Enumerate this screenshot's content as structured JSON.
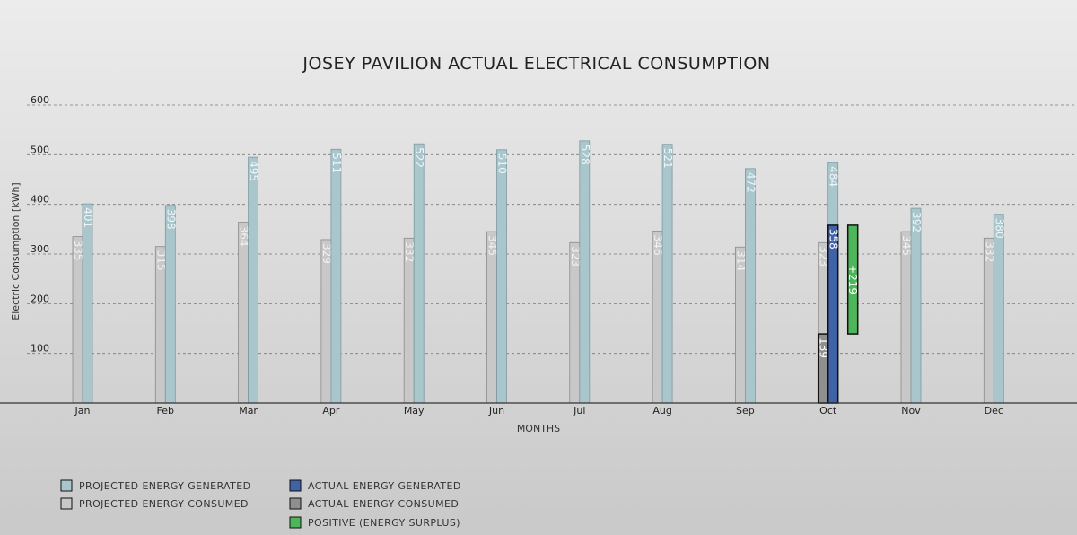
{
  "chart_data": {
    "type": "bar",
    "title": "JOSEY PAVILION ACTUAL ELECTRICAL CONSUMPTION",
    "xlabel": "MONTHS",
    "ylabel": "Electric Consumption [kWh]",
    "ylim": [
      0,
      600
    ],
    "yticks": [
      "100",
      "200",
      "300",
      "400",
      "500",
      "600"
    ],
    "grid": true,
    "legend_position": "bottom-left",
    "categories": [
      "Jan",
      "Feb",
      "Mar",
      "Apr",
      "May",
      "Jun",
      "Jul",
      "Aug",
      "Sep",
      "Oct",
      "Nov",
      "Dec"
    ],
    "series": [
      {
        "name": "PROJECTED ENERGY CONSUMED",
        "color": "#c8c8c8",
        "values": [
          335,
          315,
          364,
          329,
          332,
          345,
          323,
          346,
          314,
          323,
          345,
          332
        ]
      },
      {
        "name": "PROJECTED ENERGY GENERATED",
        "color": "#a9c6cc",
        "values": [
          401,
          398,
          495,
          511,
          522,
          510,
          528,
          521,
          472,
          484,
          392,
          380
        ]
      },
      {
        "name": "ACTUAL ENERGY CONSUMED",
        "color": "#8f8f8f",
        "values": [
          null,
          null,
          null,
          null,
          null,
          null,
          null,
          null,
          null,
          139,
          null,
          null
        ]
      },
      {
        "name": "ACTUAL ENERGY GENERATED",
        "color": "#3f62a8",
        "values": [
          null,
          null,
          null,
          null,
          null,
          null,
          null,
          null,
          null,
          358,
          null,
          null
        ]
      }
    ],
    "annotations": [
      {
        "category": "Oct",
        "series": "POSITIVE (ENERGY SURPLUS)",
        "label": "+219",
        "from": 139,
        "to": 358,
        "color": "#4db55a"
      }
    ],
    "legend": [
      {
        "label": "PROJECTED ENERGY GENERATED",
        "color": "#a9c6cc"
      },
      {
        "label": "PROJECTED ENERGY CONSUMED",
        "color": "#c8c8c8"
      },
      {
        "label": "ACTUAL ENERGY GENERATED",
        "color": "#3f62a8"
      },
      {
        "label": "ACTUAL ENERGY CONSUMED",
        "color": "#8f8f8f"
      },
      {
        "label": "POSITIVE (ENERGY SURPLUS)",
        "color": "#4db55a"
      }
    ]
  }
}
